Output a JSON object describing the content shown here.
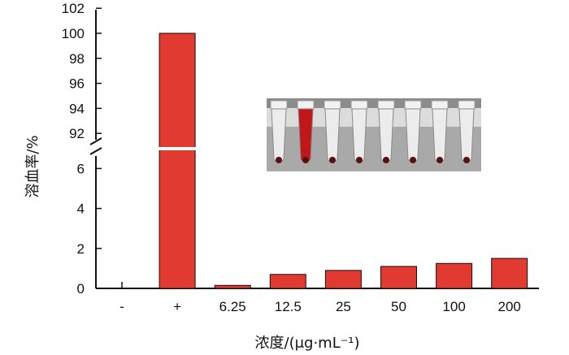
{
  "chart_data": {
    "type": "bar",
    "title": "",
    "xlabel": "浓度/(μg·mL⁻¹)",
    "ylabel": "溶血率/%",
    "categories": [
      "-",
      "+",
      "6.25",
      "12.5",
      "25",
      "50",
      "100",
      "200"
    ],
    "values": [
      0,
      100,
      0.15,
      0.7,
      0.9,
      1.1,
      1.25,
      1.5
    ],
    "y_axis_break": {
      "lower_range": [
        0,
        7
      ],
      "upper_range": [
        91,
        102
      ]
    },
    "lower_ticks": [
      "0",
      "2",
      "4",
      "6"
    ],
    "upper_ticks": [
      "92",
      "94",
      "96",
      "98",
      "100",
      "102"
    ],
    "bar_color": "#e03a31",
    "grid": false,
    "legend": "none",
    "inset_image": "photo of eight hemolysis test tubes; second tube red, others clear with red pellets"
  }
}
